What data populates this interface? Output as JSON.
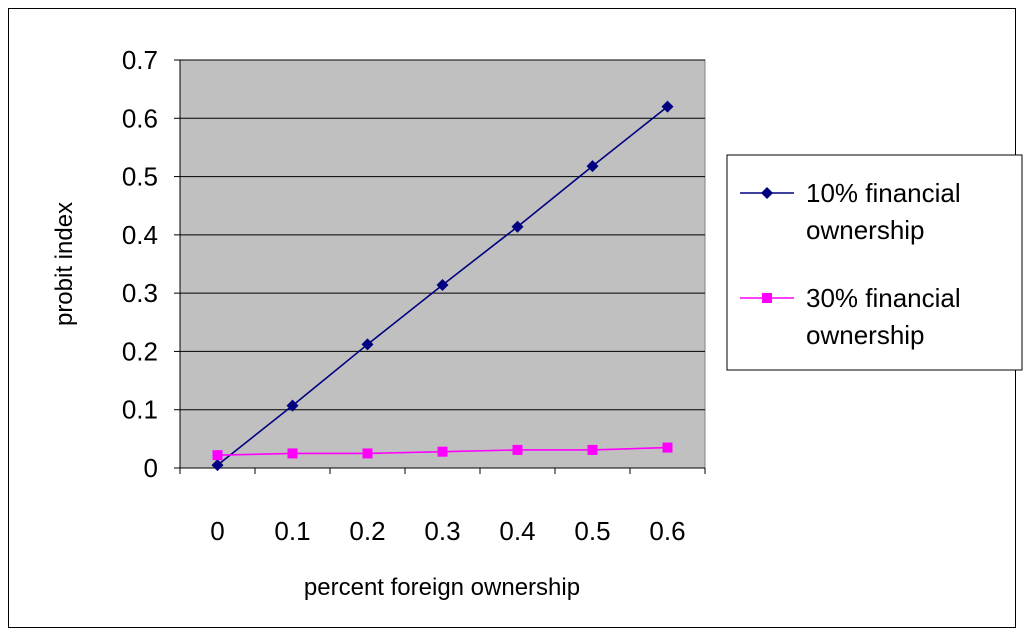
{
  "chart_data": {
    "type": "line",
    "title": "",
    "xlabel": "percent foreign ownership",
    "ylabel": "probit index",
    "categories": [
      "0",
      "0.1",
      "0.2",
      "0.3",
      "0.4",
      "0.5",
      "0.6"
    ],
    "x": [
      0,
      0.1,
      0.2,
      0.3,
      0.4,
      0.5,
      0.6
    ],
    "ylim": [
      0,
      0.7
    ],
    "yticks": [
      "0",
      "0.1",
      "0.2",
      "0.3",
      "0.4",
      "0.5",
      "0.6",
      "0.7"
    ],
    "grid": "horizontal major gridlines",
    "plot_background": "#c0c0c0",
    "legend_position": "right",
    "series": [
      {
        "name": "10% financial ownership",
        "name_lines": [
          "10% financial",
          "ownership"
        ],
        "values": [
          0.005,
          0.107,
          0.212,
          0.314,
          0.414,
          0.518,
          0.62
        ],
        "color": "#000080",
        "marker": "diamond"
      },
      {
        "name": "30% financial ownership",
        "name_lines": [
          "30% financial",
          "ownership"
        ],
        "values": [
          0.022,
          0.025,
          0.025,
          0.028,
          0.031,
          0.031,
          0.035
        ],
        "color": "#ff00ff",
        "marker": "square"
      }
    ]
  }
}
